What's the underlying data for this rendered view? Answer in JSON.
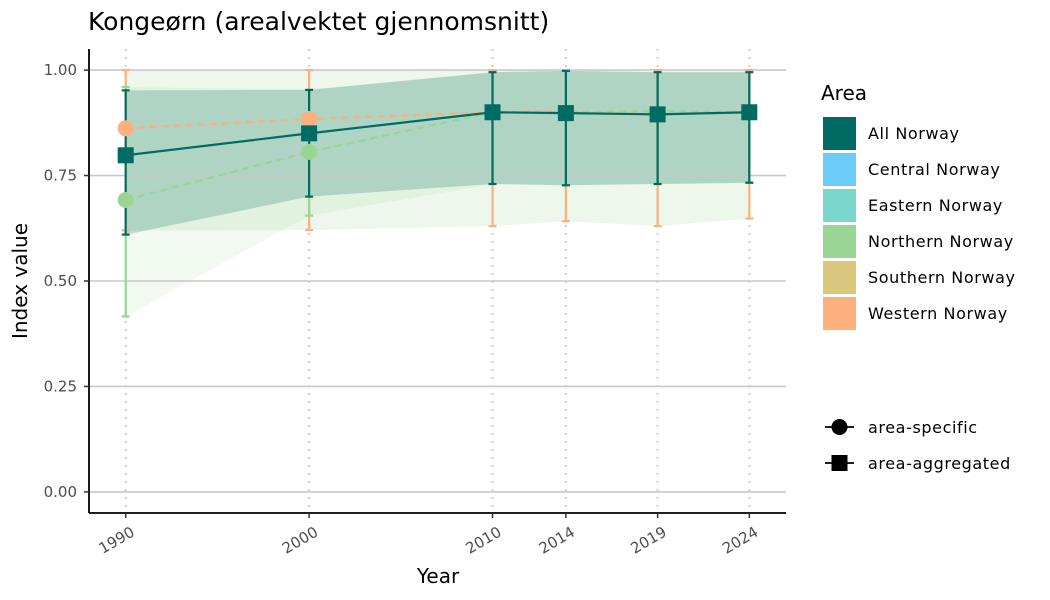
{
  "chart_data": {
    "type": "line",
    "title": "Kongeørn (arealvektet gjennomsnitt)",
    "xlabel": "Year",
    "ylabel": "Index value",
    "x": [
      1990,
      2000,
      2010,
      2014,
      2019,
      2024
    ],
    "x_tick_labels": [
      "1990",
      "2000",
      "2010",
      "2014",
      "2019",
      "2024"
    ],
    "xlim": [
      1988,
      2026
    ],
    "ylim": [
      -0.05,
      1.05
    ],
    "y_ticks": [
      0.0,
      0.25,
      0.5,
      0.75,
      1.0
    ],
    "y_tick_labels": [
      "0.00",
      "0.25",
      "0.50",
      "0.75",
      "1.00"
    ],
    "grid": "horizontal major lines; dotted vertical lines at years",
    "legend_position": "right",
    "legend_area_title": "Area",
    "series": [
      {
        "name": "All Norway",
        "color": "#006B63",
        "line": "solid",
        "marker": "square",
        "kind": "area-aggregated",
        "x": [
          1990,
          2000,
          2010,
          2014,
          2019,
          2024
        ],
        "values": [
          0.798,
          0.85,
          0.9,
          0.898,
          0.895,
          0.9
        ],
        "lower": [
          0.61,
          0.7,
          0.73,
          0.727,
          0.73,
          0.733
        ],
        "upper": [
          0.952,
          0.953,
          0.995,
          0.998,
          0.995,
          0.995
        ]
      },
      {
        "name": "Northern Norway",
        "color": "#99D594",
        "line": "dashed",
        "marker": "circle",
        "kind": "area-specific",
        "x": [
          1990,
          2000,
          2010,
          2014,
          2019,
          2024
        ],
        "values": [
          0.692,
          0.806,
          0.9,
          0.9,
          0.903,
          0.9
        ],
        "lower": [
          0.416,
          0.655,
          0.73,
          0.727,
          0.73,
          0.733
        ],
        "upper": [
          0.96,
          0.953,
          0.995,
          0.998,
          0.995,
          0.995
        ]
      },
      {
        "name": "Western Norway",
        "color": "#FDB07D",
        "line": "dashed",
        "marker": "circle",
        "kind": "area-specific",
        "x": [
          1990,
          2000,
          2010,
          2014,
          2019,
          2024
        ],
        "values": [
          0.862,
          0.884,
          0.9,
          0.903,
          0.895,
          0.9
        ],
        "lower": [
          0.62,
          0.621,
          0.63,
          0.642,
          0.63,
          0.648
        ],
        "upper": [
          1.0,
          1.0,
          1.0,
          1.0,
          1.0,
          1.0
        ]
      }
    ],
    "legend_area": [
      {
        "label": "All Norway",
        "color": "#006B63"
      },
      {
        "label": "Central Norway",
        "color": "#6DCBF9"
      },
      {
        "label": "Eastern Norway",
        "color": "#7BD6CE"
      },
      {
        "label": "Northern Norway",
        "color": "#99D594"
      },
      {
        "label": "Southern Norway",
        "color": "#D9C77B"
      },
      {
        "label": "Western Norway",
        "color": "#FDB07D"
      }
    ],
    "legend_shape": [
      {
        "label": "area-specific",
        "shape": "circle"
      },
      {
        "label": "area-aggregated",
        "shape": "square"
      }
    ]
  }
}
